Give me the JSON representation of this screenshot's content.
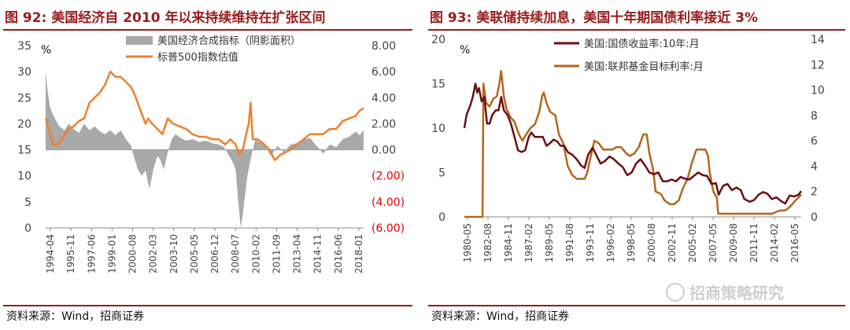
{
  "panels": [
    {
      "title": "图 92:  美国经济自 2010 年以来持续维持在扩张区间",
      "source": "资料来源：Wind，招商证券",
      "unit": "%",
      "colors": {
        "bars": "#a9a9a9",
        "line": "#f07f2e",
        "title": "#9b1c1c",
        "neg": "#e00000"
      }
    },
    {
      "title": "图 93:  美联储持续加息，美国十年期国债利率接近 3%",
      "source": "资料来源：Wind，招商证券",
      "unit": "%",
      "watermark": "招商策略研究",
      "colors": {
        "line1": "#6b0f12",
        "line2": "#b5651d",
        "title": "#9b1c1c"
      }
    }
  ],
  "chart_data": [
    {
      "type": "area",
      "title": "",
      "x_ticks": [
        "1994-04",
        "1995-11",
        "1997-06",
        "1999-01",
        "2000-08",
        "2002-03",
        "2003-10",
        "2005-05",
        "2006-12",
        "2008-07",
        "2010-02",
        "2011-09",
        "2013-04",
        "2014-11",
        "2016-06",
        "2018-01"
      ],
      "x_range": [
        1994.25,
        2018.6
      ],
      "y_left": {
        "range": [
          0,
          35
        ],
        "ticks": [
          "35",
          "30",
          "25",
          "20",
          "15",
          "10",
          "5",
          "0"
        ]
      },
      "y_right": {
        "range": [
          -6,
          8
        ],
        "ticks": [
          "8.00",
          "6.00",
          "4.00",
          "2.00",
          "0.00",
          "(2.00)",
          "(4.00)",
          "(6.00)"
        ]
      },
      "series": [
        {
          "name": "美国经济合成指标（阴影面积）",
          "axis": "right",
          "kind": "area",
          "x": [
            1994.25,
            1994.4,
            1994.6,
            1994.9,
            1995.3,
            1995.7,
            1996.0,
            1996.4,
            1996.8,
            1997.2,
            1997.6,
            1998.0,
            1998.4,
            1998.8,
            1999.2,
            1999.6,
            2000.0,
            2000.4,
            2000.8,
            2001.0,
            2001.3,
            2001.6,
            2001.9,
            2002.2,
            2002.5,
            2002.8,
            2003.0,
            2003.3,
            2003.6,
            2003.9,
            2004.2,
            2004.6,
            2005.0,
            2005.5,
            2006.0,
            2006.5,
            2007.0,
            2007.5,
            2007.9,
            2008.2,
            2008.5,
            2008.8,
            2009.0,
            2009.2,
            2009.4,
            2009.7,
            2010.0,
            2010.3,
            2010.6,
            2011.0,
            2011.5,
            2012.0,
            2012.5,
            2013.0,
            2013.5,
            2014.0,
            2014.5,
            2015.0,
            2015.5,
            2016.0,
            2016.5,
            2017.0,
            2017.5,
            2018.0,
            2018.3,
            2018.6
          ],
          "values": [
            6.0,
            4.5,
            3.2,
            2.5,
            1.8,
            1.5,
            2.0,
            1.6,
            1.3,
            2.0,
            1.5,
            1.8,
            1.4,
            1.2,
            1.5,
            1.1,
            1.5,
            0.8,
            0.3,
            -0.5,
            -1.5,
            -2.0,
            -1.6,
            -3.0,
            -1.5,
            -0.5,
            -0.7,
            -1.5,
            -0.2,
            0.8,
            1.2,
            0.9,
            0.7,
            0.8,
            0.6,
            0.7,
            0.5,
            0.4,
            0.2,
            -0.3,
            -0.8,
            -1.5,
            -4.0,
            -6.0,
            -4.5,
            -2.0,
            -0.5,
            0.8,
            0.6,
            0.4,
            -0.5,
            0.3,
            -0.2,
            0.4,
            0.5,
            0.8,
            0.9,
            0.3,
            -0.3,
            0.4,
            0.2,
            0.8,
            1.0,
            1.4,
            1.1,
            1.5
          ]
        },
        {
          "name": "标普500指数估值",
          "axis": "left",
          "kind": "line",
          "x": [
            1994.25,
            1994.5,
            1994.8,
            1995.2,
            1995.6,
            1996.0,
            1996.4,
            1996.8,
            1997.2,
            1997.6,
            1998.0,
            1998.4,
            1998.8,
            1999.2,
            1999.6,
            2000.0,
            2000.4,
            2000.8,
            2001.0,
            2001.3,
            2001.6,
            2001.9,
            2002.1,
            2002.4,
            2002.8,
            2003.2,
            2003.6,
            2004.0,
            2004.5,
            2005.0,
            2005.5,
            2006.0,
            2006.5,
            2007.0,
            2007.5,
            2008.0,
            2008.4,
            2008.8,
            2009.1,
            2009.4,
            2009.6,
            2009.8,
            2009.95,
            2010.1,
            2010.5,
            2011.0,
            2011.4,
            2011.8,
            2012.2,
            2012.6,
            2013.0,
            2013.5,
            2014.0,
            2014.5,
            2015.0,
            2015.5,
            2016.0,
            2016.5,
            2017.0,
            2017.5,
            2018.0,
            2018.3,
            2018.6
          ],
          "values": [
            21,
            19,
            16,
            16,
            17.5,
            19,
            19.5,
            20.5,
            21,
            24,
            25,
            26,
            27.5,
            30,
            29,
            29,
            28,
            27,
            26,
            24,
            22,
            20,
            21,
            20,
            19,
            18,
            21,
            20,
            19.5,
            19,
            18,
            17.5,
            17.5,
            17,
            17,
            16,
            17,
            16,
            14,
            15.5,
            18,
            20,
            24,
            17,
            17,
            16,
            15,
            13,
            14,
            14.5,
            15,
            16,
            17,
            18,
            18,
            18,
            19,
            19,
            20.5,
            21,
            21.5,
            22.5,
            23
          ]
        }
      ]
    },
    {
      "type": "line",
      "title": "",
      "x_ticks": [
        "1980-05",
        "1982-08",
        "1984-11",
        "1987-02",
        "1989-05",
        "1991-08",
        "1993-11",
        "1996-02",
        "1998-05",
        "2000-08",
        "2002-11",
        "2005-02",
        "2007-05",
        "2009-08",
        "2011-11",
        "2014-02",
        "2016-05"
      ],
      "x_range": [
        1980.35,
        2018.3
      ],
      "y_left": {
        "range": [
          0,
          20
        ],
        "ticks": [
          "20",
          "15",
          "10",
          "5",
          "0"
        ]
      },
      "y_right": {
        "range": [
          0,
          14
        ],
        "ticks": [
          "14",
          "12",
          "10",
          "8",
          "6",
          "4",
          "2",
          "0"
        ]
      },
      "series": [
        {
          "name": "美国:国债收益率:10年:月",
          "axis": "left",
          "x": [
            1980.35,
            1980.6,
            1981.0,
            1981.3,
            1981.6,
            1981.8,
            1982.0,
            1982.3,
            1982.6,
            1982.9,
            1983.2,
            1983.5,
            1983.9,
            1984.2,
            1984.5,
            1984.8,
            1985.2,
            1985.6,
            1986.0,
            1986.4,
            1986.8,
            1987.2,
            1987.6,
            1987.9,
            1988.3,
            1988.8,
            1989.2,
            1989.6,
            1990.0,
            1990.4,
            1990.8,
            1991.2,
            1991.6,
            1992.0,
            1992.5,
            1993.0,
            1993.5,
            1993.9,
            1994.3,
            1994.8,
            1995.2,
            1995.7,
            1996.2,
            1996.7,
            1997.2,
            1997.7,
            1998.2,
            1998.7,
            1999.2,
            1999.7,
            2000.2,
            2000.7,
            2001.2,
            2001.7,
            2002.2,
            2002.7,
            2003.2,
            2003.7,
            2004.2,
            2004.7,
            2005.2,
            2005.7,
            2006.2,
            2006.7,
            2007.2,
            2007.7,
            2008.2,
            2008.7,
            2009.0,
            2009.5,
            2010.0,
            2010.5,
            2011.0,
            2011.5,
            2011.9,
            2012.5,
            2013.0,
            2013.5,
            2014.0,
            2014.5,
            2015.0,
            2015.5,
            2016.0,
            2016.5,
            2017.0,
            2017.5,
            2018.0,
            2018.3
          ],
          "values": [
            10.0,
            11.5,
            12.5,
            13.5,
            15.0,
            14.0,
            14.5,
            13.0,
            13.5,
            10.5,
            10.5,
            11.5,
            12.0,
            12.0,
            13.5,
            12.0,
            11.5,
            10.5,
            9.0,
            7.5,
            7.3,
            7.5,
            9.0,
            9.5,
            9.0,
            9.0,
            9.0,
            8.0,
            8.3,
            8.7,
            8.5,
            8.0,
            8.0,
            7.3,
            7.0,
            6.5,
            5.8,
            5.5,
            7.0,
            7.8,
            7.0,
            6.0,
            6.3,
            6.8,
            6.5,
            6.0,
            5.6,
            4.7,
            5.0,
            6.0,
            6.5,
            5.8,
            5.0,
            4.8,
            5.0,
            4.0,
            4.0,
            4.2,
            4.0,
            4.5,
            4.3,
            4.2,
            4.6,
            5.0,
            4.7,
            4.6,
            3.7,
            3.8,
            2.5,
            3.5,
            3.7,
            3.0,
            3.3,
            3.0,
            2.0,
            1.7,
            1.9,
            2.5,
            2.8,
            2.6,
            2.0,
            2.2,
            1.8,
            1.5,
            2.4,
            2.3,
            2.5,
            2.9
          ]
        },
        {
          "name": "美国:联邦基金目标利率:月",
          "axis": "right",
          "x": [
            1980.35,
            1981.0,
            1981.5,
            1982.0,
            1982.3,
            1982.4,
            1982.5,
            1982.8,
            1983.2,
            1983.6,
            1984.0,
            1984.3,
            1984.5,
            1984.8,
            1985.1,
            1985.6,
            1986.0,
            1986.5,
            1986.9,
            1987.3,
            1987.8,
            1988.3,
            1988.8,
            1989.1,
            1989.3,
            1989.6,
            1990.0,
            1990.6,
            1991.0,
            1991.5,
            1992.0,
            1992.5,
            1993.0,
            1993.5,
            1993.9,
            1994.2,
            1994.5,
            1995.0,
            1995.5,
            1996.0,
            1996.5,
            1997.0,
            1997.5,
            1998.0,
            1998.6,
            1999.0,
            1999.5,
            2000.0,
            2000.5,
            2000.9,
            2001.2,
            2001.6,
            2001.9,
            2002.5,
            2002.9,
            2003.5,
            2004.0,
            2004.5,
            2005.0,
            2005.5,
            2006.0,
            2006.5,
            2007.0,
            2007.5,
            2007.8,
            2008.0,
            2008.4,
            2008.8,
            2008.95,
            2009.5,
            2010.0,
            2011.0,
            2012.0,
            2013.0,
            2014.0,
            2015.0,
            2015.9,
            2016.5,
            2016.95,
            2017.3,
            2017.6,
            2017.95,
            2018.3
          ],
          "values": [
            0,
            0,
            0,
            0,
            0,
            0,
            10.5,
            9.0,
            8.7,
            9.3,
            9.5,
            10.5,
            11.5,
            9.5,
            8.5,
            7.8,
            7.5,
            6.5,
            6.0,
            6.5,
            7.0,
            7.3,
            8.3,
            9.5,
            9.8,
            9.0,
            8.3,
            8.0,
            6.5,
            5.8,
            4.0,
            3.3,
            3.0,
            3.0,
            3.0,
            3.5,
            4.5,
            6.0,
            5.8,
            5.3,
            5.3,
            5.3,
            5.5,
            5.5,
            5.0,
            4.8,
            5.0,
            5.5,
            6.5,
            6.5,
            5.0,
            3.8,
            2.0,
            1.8,
            1.3,
            1.0,
            1.0,
            1.3,
            2.3,
            3.0,
            4.3,
            5.3,
            5.3,
            5.3,
            4.8,
            3.5,
            2.0,
            1.5,
            0.25,
            0.25,
            0.25,
            0.25,
            0.25,
            0.25,
            0.25,
            0.25,
            0.5,
            0.5,
            0.75,
            1.0,
            1.25,
            1.5,
            1.75
          ]
        }
      ]
    }
  ]
}
